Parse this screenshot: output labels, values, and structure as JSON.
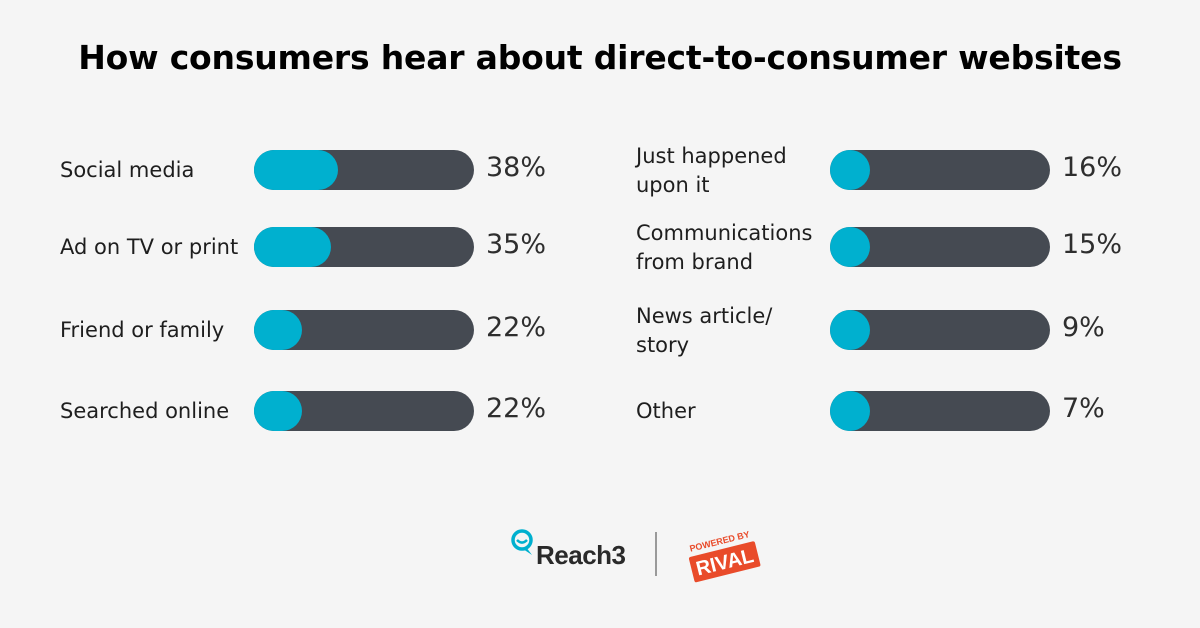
{
  "title": "How consumers hear about direct-to-consumer websites",
  "chart_data": {
    "type": "bar",
    "title": "How consumers hear about direct-to-consumer websites",
    "unit": "%",
    "ylim": [
      0,
      100
    ],
    "categories": [
      "Social media",
      "Ad on TV or print",
      "Friend or family",
      "Searched online",
      "Just happened upon it",
      "Communications from brand",
      "News article/ story",
      "Other"
    ],
    "values": [
      38,
      35,
      22,
      22,
      16,
      15,
      9,
      7
    ],
    "value_labels": [
      "38%",
      "35%",
      "22%",
      "22%",
      "16%",
      "15%",
      "9%",
      "7%"
    ],
    "label_lines": [
      [
        "Social media"
      ],
      [
        "Ad on TV or print"
      ],
      [
        "Friend or family"
      ],
      [
        "Searched online"
      ],
      [
        "Just happened",
        "upon it"
      ],
      [
        "Communications",
        "from brand"
      ],
      [
        "News article/",
        "story"
      ],
      [
        "Other"
      ]
    ]
  },
  "colors": {
    "fill": "#00b0cf",
    "track": "#454a52",
    "background": "#f5f5f5"
  },
  "footer": {
    "brand_left": "Reach3",
    "brand_right_top": "POWERED BY",
    "brand_right_main": "RIVAL"
  }
}
